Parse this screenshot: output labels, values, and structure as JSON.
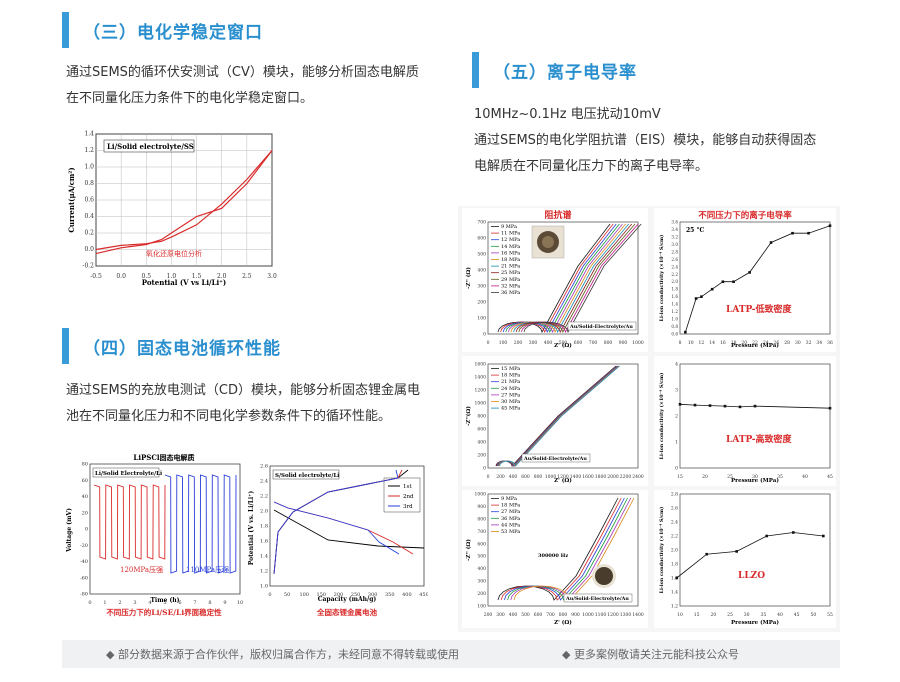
{
  "sections": {
    "cv": {
      "title": "（三）电化学稳定窗口",
      "desc": "通过SEMS的循环伏安测试（CV）模块，能够分析固态电解质\n在不同量化压力条件下的电化学稳定窗口。",
      "chart": {
        "legend": "Li/Solid electrolyte/SS",
        "xlabel": "Potential (V vs Li/Li⁺)",
        "ylabel": "Current(μA/cm²)",
        "annotation": "氧化还原电位分析",
        "xticks": [
          "-0.5",
          "0.0",
          "0.5",
          "1.0",
          "1.5",
          "2.0",
          "2.5",
          "3.0"
        ],
        "yticks": [
          "1.4",
          "1.2",
          "1.0",
          "0.8",
          "0.6",
          "0.4",
          "0.2",
          "0.0",
          "-0.2"
        ]
      }
    },
    "cd": {
      "title": "（四）固态电池循环性能",
      "desc": "通过SEMS的充放电测试（CD）模块，能够分析固态锂金属电\n池在不同量化压力和不同电化学参数条件下的循环性能。",
      "chart_left": {
        "title": "LiPSCl固态电解质",
        "legend": "Li/Solid Electrolyte/Li",
        "xlabel": "Time (h)",
        "ylabel": "Voltage (mV)",
        "label_a": "120MPa压强",
        "label_b": "110MPa压强",
        "caption": "不同压力下的Li/SE/Li界面稳定性",
        "xticks": [
          "0",
          "1",
          "2",
          "3",
          "4",
          "5",
          "6",
          "7",
          "8",
          "9",
          "10"
        ],
        "yticks": [
          "80",
          "60",
          "40",
          "20",
          "0",
          "-20",
          "-40",
          "-60",
          "-80"
        ]
      },
      "chart_right": {
        "legend": "S/Solid electrolyte/Li",
        "xlabel": "Capacity (mAh/g)",
        "ylabel": "Potential (V vs. Li/Li⁺)",
        "caption": "全固态锂金属电池",
        "series": [
          "1st",
          "2nd",
          "3rd"
        ],
        "xticks": [
          "0",
          "50",
          "100",
          "150",
          "200",
          "250",
          "300",
          "350",
          "400",
          "450"
        ],
        "yticks": [
          "2.6",
          "2.4",
          "2.2",
          "2.0",
          "1.8",
          "1.6",
          "1.4",
          "1.2",
          "1.0"
        ]
      }
    },
    "eis": {
      "title": "（五）离子电导率",
      "line1": "10MHz~0.1Hz  电压扰动10mV",
      "desc": "通过SEMS的电化学阻抗谱（EIS）模块，能够自动获得固态\n电解质在不同量化压力下的离子电导率。",
      "nyquist_title": "阻抗谱",
      "cond_title": "不同压力下的离子电导率",
      "nyquist1": {
        "legend": [
          "9 MPa",
          "11 MPa",
          "12 MPa",
          "14 MPa",
          "16 MPa",
          "18 MPa",
          "21 MPa",
          "25 MPa",
          "29 MPa",
          "32 MPa",
          "36 MPa"
        ],
        "cell": "Au/Solid-Electrolyte/Au",
        "xlabel": "Z' (Ω)",
        "ylabel": "-Z'' (Ω)",
        "xticks": [
          "0",
          "100",
          "200",
          "300",
          "400",
          "500",
          "600",
          "700",
          "800",
          "900",
          "1000"
        ],
        "yticks": [
          "700",
          "600",
          "500",
          "400",
          "300",
          "200",
          "100",
          "0"
        ]
      },
      "nyquist2": {
        "legend": [
          "15 MPa",
          "18 MPa",
          "21 MPa",
          "24 MPa",
          "27 MPa",
          "30 MPa",
          "45 MPa"
        ],
        "cell": "Au/Solid-Electrolyte/Au",
        "xlabel": "Z' (Ω)",
        "ylabel": "-Z''(Ω)",
        "xticks": [
          "0",
          "200",
          "400",
          "600",
          "800",
          "1000",
          "1200",
          "1400",
          "1600",
          "1800",
          "2000",
          "2200",
          "2400"
        ],
        "yticks": [
          "1600",
          "1400",
          "1200",
          "1000",
          "800",
          "600",
          "400",
          "200",
          "0"
        ]
      },
      "nyquist3": {
        "legend": [
          "9 MPa",
          "18 MPa",
          "27 MPa",
          "36 MPa",
          "44 MPa",
          "53 MPa"
        ],
        "freq": "300000 Hz",
        "cell": "Au/Solid-Electrolyte/Au",
        "xlabel": "Z' (Ω)",
        "ylabel": "-Z'' (Ω)",
        "xticks": [
          "200",
          "300",
          "400",
          "500",
          "600",
          "700",
          "800",
          "900",
          "1000",
          "1100",
          "1200",
          "1300",
          "1400"
        ],
        "yticks": [
          "1000",
          "900",
          "800",
          "700",
          "600",
          "500",
          "400",
          "300",
          "200",
          "100"
        ]
      },
      "cond1": {
        "temp": "25 °C",
        "label": "LATP-低致密度",
        "xlabel": "Pressure (MPa)",
        "ylabel": "Li-ion conductivity (×10⁻⁴ S/cm)",
        "xticks": [
          "8",
          "10",
          "12",
          "14",
          "16",
          "18",
          "20",
          "22",
          "24",
          "26",
          "28",
          "30",
          "32",
          "34",
          "36"
        ],
        "yticks": [
          "3.6",
          "3.4",
          "3.2",
          "3.0",
          "2.8",
          "2.6",
          "2.4",
          "2.2",
          "2.0",
          "1.8",
          "1.6",
          "1.4",
          "1.2",
          "1.0",
          "0.8",
          "0.6"
        ]
      },
      "cond2": {
        "label": "LATP-高致密度",
        "xlabel": "Pressure (MPa)",
        "ylabel": "Li-ion conductivity (×10⁻⁴ S/cm)",
        "xticks": [
          "15",
          "20",
          "25",
          "30",
          "35",
          "40",
          "45"
        ],
        "yticks": [
          "4",
          "3",
          "2",
          "1",
          "0"
        ]
      },
      "cond3": {
        "label": "LLZO",
        "xlabel": "Pressure (MPa)",
        "ylabel": "Li-ion conductivity (×10⁻⁴ S/cm)",
        "xticks": [
          "10",
          "15",
          "20",
          "25",
          "30",
          "35",
          "40",
          "45",
          "50",
          "55"
        ],
        "yticks": [
          "2.8",
          "2.6",
          "2.4",
          "2.2",
          "2.0",
          "1.8",
          "1.6",
          "1.4",
          "1.2"
        ]
      }
    }
  },
  "footer": {
    "left": "部分数据来源于合作伙伴，版权归属合作方，未经同意不得转载或使用",
    "right": "更多案例敬请关注元能科技公众号"
  },
  "chart_data": [
    {
      "type": "line",
      "xlabel": "Potential (V vs Li/Li⁺)",
      "ylabel": "Current(μA/cm²)",
      "xlim": [
        -0.5,
        3.0
      ],
      "ylim": [
        -0.2,
        1.4
      ],
      "series": [
        {
          "name": "",
          "x": [
            -0.5,
            0.0,
            0.5,
            0.8,
            1.0,
            1.5,
            2.0,
            2.5,
            3.0
          ],
          "y": [
            0.0,
            0.05,
            0.07,
            0.1,
            0.15,
            0.3,
            0.55,
            0.85,
            1.2
          ]
        },
        {
          "name": "",
          "x": [
            -0.5,
            0.0,
            0.5,
            0.8,
            1.0,
            1.5,
            2.0,
            2.5,
            3.0
          ],
          "y": [
            -0.05,
            0.02,
            0.06,
            0.12,
            0.2,
            0.4,
            0.5,
            0.8,
            1.2
          ]
        }
      ]
    },
    {
      "type": "scatter",
      "xlabel": "Pressure (MPa)",
      "ylabel": "Li-ion conductivity (×10⁻⁴ S/cm)",
      "xlim": [
        8,
        36
      ],
      "ylim": [
        0.6,
        3.6
      ],
      "series": [
        {
          "name": "LATP-低致密度",
          "x": [
            9,
            11,
            12,
            14,
            16,
            18,
            21,
            25,
            29,
            32,
            36
          ],
          "y": [
            0.65,
            1.55,
            1.6,
            1.8,
            2.0,
            2.0,
            2.25,
            3.05,
            3.3,
            3.3,
            3.5
          ]
        }
      ]
    },
    {
      "type": "scatter",
      "xlabel": "Pressure (MPa)",
      "ylabel": "Li-ion conductivity (×10⁻⁴ S/cm)",
      "xlim": [
        15,
        45
      ],
      "ylim": [
        0,
        4
      ],
      "series": [
        {
          "name": "LATP-高致密度",
          "x": [
            15,
            18,
            21,
            24,
            27,
            30,
            45
          ],
          "y": [
            2.45,
            2.42,
            2.4,
            2.38,
            2.35,
            2.38,
            2.3
          ]
        }
      ]
    },
    {
      "type": "scatter",
      "xlabel": "Pressure (MPa)",
      "ylabel": "Li-ion conductivity (×10⁻⁴ S/cm)",
      "xlim": [
        10,
        55
      ],
      "ylim": [
        1.2,
        2.8
      ],
      "series": [
        {
          "name": "LLZO",
          "x": [
            9,
            18,
            27,
            36,
            44,
            53
          ],
          "y": [
            1.6,
            1.94,
            1.98,
            2.2,
            2.25,
            2.2
          ]
        }
      ]
    }
  ]
}
